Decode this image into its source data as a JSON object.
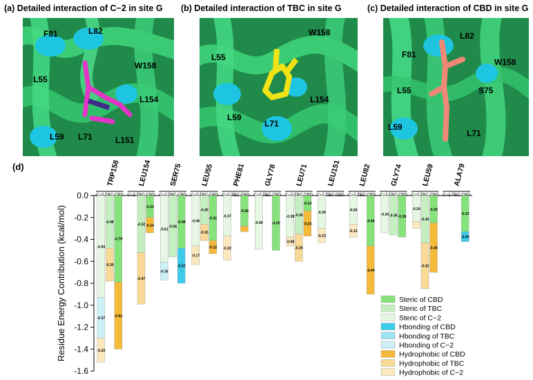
{
  "panels": [
    {
      "label": "(a) Detailed interaction of C−2 in site G",
      "residues": [
        "F81",
        "L82",
        "W158",
        "L55",
        "L154",
        "L59",
        "L71",
        "L151"
      ]
    },
    {
      "label": "(b) Detailed interaction of TBC in site G",
      "residues": [
        "W158",
        "L55",
        "L154",
        "L59",
        "L71"
      ]
    },
    {
      "label": "(c) Detailed interaction of CBD in site G",
      "residues": [
        "L82",
        "F81",
        "W158",
        "L55",
        "S75",
        "L59",
        "L71"
      ]
    }
  ],
  "chart_label": "(d)",
  "colors": {
    "steric": [
      "#fcf1d0",
      "#cdeecb",
      "#7fde72"
    ],
    "steric_list": [
      "#e6f7e3",
      "#c5efc0",
      "#86e27a"
    ],
    "hbonding": [
      "#cdeff6",
      "#9ee3f2",
      "#3ccbea"
    ],
    "hydrophobic": [
      "#fce8bf",
      "#f9d996",
      "#f6ba3a"
    ]
  },
  "chart_data": {
    "type": "bar",
    "stacked": true,
    "ylabel": "Residue Energy Contribution (kcal/mol)",
    "ylim": [
      -1.6,
      0
    ],
    "yticks": [
      "0.0",
      "-0.2",
      "-0.4",
      "-0.6",
      "-0.8",
      "-1.0",
      "-1.2",
      "-1.4",
      "-1.6"
    ],
    "ytick_values": [
      0,
      -0.2,
      -0.4,
      -0.6,
      -0.8,
      -1.0,
      -1.2,
      -1.4,
      -1.6
    ],
    "categories": [
      "TRP158",
      "LEU154",
      "SER75",
      "LEU55",
      "PHE81",
      "GLY78",
      "LEU71",
      "LEU151",
      "LEU82",
      "GLY74",
      "LEU59",
      "ALA79"
    ],
    "subgroup_header": "C−2 TBC CBD",
    "ligands": [
      "C−2",
      "TBC",
      "CBD"
    ],
    "components": [
      "steric",
      "hbonding",
      "hydrophobic"
    ],
    "values": {
      "TRP158": [
        {
          "steric": -0.93,
          "hbonding": -0.37,
          "hydrophobic": -0.22
        },
        {
          "steric": -0.48,
          "hbonding": 0,
          "hydrophobic": -0.3
        },
        {
          "steric": -0.79,
          "hbonding": 0,
          "hydrophobic": -0.61
        }
      ],
      "LEU154": [
        {
          "steric": 0,
          "hbonding": 0,
          "hydrophobic": 0
        },
        {
          "steric": -0.52,
          "hbonding": 0,
          "hydrophobic": -0.47
        },
        {
          "steric": -0.2,
          "hbonding": 0,
          "hydrophobic": -0.14
        }
      ],
      "SER75": [
        {
          "steric": -0.61,
          "hbonding": -0.16,
          "hydrophobic": 0
        },
        {
          "steric": -0.56,
          "hbonding": 0,
          "hydrophobic": 0
        },
        {
          "steric": -0.48,
          "hbonding": -0.32,
          "hydrophobic": 0
        }
      ],
      "LEU55": [
        {
          "steric": -0.46,
          "hbonding": 0,
          "hydrophobic": -0.17
        },
        {
          "steric": -0.26,
          "hbonding": 0,
          "hydrophobic": -0.15
        },
        {
          "steric": -0.41,
          "hbonding": 0,
          "hydrophobic": -0.12
        }
      ],
      "PHE81": [
        {
          "steric": -0.37,
          "hbonding": 0,
          "hydrophobic": -0.22
        },
        {
          "steric": 0,
          "hbonding": 0,
          "hydrophobic": 0
        },
        {
          "steric": -0.28,
          "hbonding": 0,
          "hydrophobic": -0.05
        }
      ],
      "GLY78": [
        {
          "steric": -0.49,
          "hbonding": 0,
          "hydrophobic": 0
        },
        {
          "steric": 0,
          "hbonding": 0,
          "hydrophobic": 0
        },
        {
          "steric": -0.5,
          "hbonding": 0,
          "hydrophobic": 0
        }
      ],
      "LEU71": [
        {
          "steric": -0.38,
          "hbonding": 0,
          "hydrophobic": -0.08
        },
        {
          "steric": -0.35,
          "hbonding": 0,
          "hydrophobic": -0.25
        },
        {
          "steric": -0.14,
          "hbonding": 0,
          "hydrophobic": -0.23
        }
      ],
      "LEU151": [
        {
          "steric": -0.3,
          "hbonding": 0,
          "hydrophobic": -0.13
        },
        {
          "steric": 0,
          "hbonding": 0,
          "hydrophobic": 0
        },
        {
          "steric": 0,
          "hbonding": 0,
          "hydrophobic": 0
        }
      ],
      "LEU82": [
        {
          "steric": -0.26,
          "hbonding": 0,
          "hydrophobic": -0.12
        },
        {
          "steric": 0,
          "hbonding": 0,
          "hydrophobic": 0
        },
        {
          "steric": -0.46,
          "hbonding": 0,
          "hydrophobic": -0.44
        }
      ],
      "GLY74": [
        {
          "steric": -0.34,
          "hbonding": 0,
          "hydrophobic": 0
        },
        {
          "steric": -0.36,
          "hbonding": 0,
          "hydrophobic": 0
        },
        {
          "steric": -0.38,
          "hbonding": 0,
          "hydrophobic": 0
        }
      ],
      "LEU59": [
        {
          "steric": -0.24,
          "hbonding": 0,
          "hydrophobic": -0.06
        },
        {
          "steric": -0.43,
          "hbonding": 0,
          "hydrophobic": -0.42
        },
        {
          "steric": -0.25,
          "hbonding": 0,
          "hydrophobic": -0.45
        }
      ],
      "ALA79": [
        {
          "steric": 0,
          "hbonding": 0,
          "hydrophobic": 0
        },
        {
          "steric": 0,
          "hbonding": 0,
          "hydrophobic": 0
        },
        {
          "steric": -0.33,
          "hbonding": -0.09,
          "hydrophobic": 0
        }
      ]
    },
    "legend": [
      "Steric of CBD",
      "Steric of TBC",
      "Steric of C−2",
      "Hbonding of CBD",
      "Hbonding of TBC",
      "Hbonding of C−2",
      "Hydrophobic of CBD",
      "Hydrophobic of TBC",
      "Hydrophobic of C−2"
    ],
    "legend_position": "bottom-right"
  }
}
